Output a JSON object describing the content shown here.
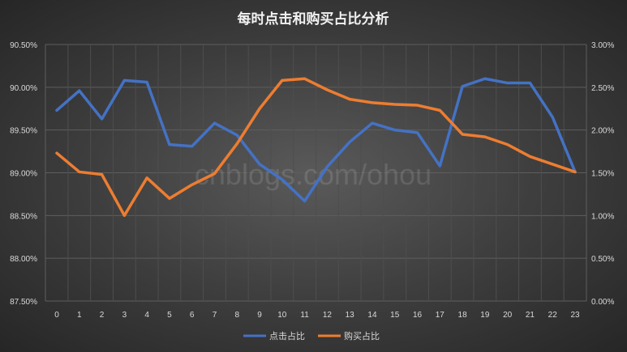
{
  "chart_data": {
    "type": "line",
    "title": "每时点击和购买占比分析",
    "watermark": "cnblogs.com/ohou",
    "categories": [
      "0",
      "1",
      "2",
      "3",
      "4",
      "5",
      "6",
      "7",
      "8",
      "9",
      "10",
      "11",
      "12",
      "13",
      "14",
      "15",
      "16",
      "17",
      "18",
      "19",
      "20",
      "21",
      "22",
      "23"
    ],
    "y_left": {
      "ylim": [
        87.5,
        90.5
      ],
      "ticks": [
        "87.50%",
        "88.00%",
        "88.50%",
        "89.00%",
        "89.50%",
        "90.00%",
        "90.50%"
      ]
    },
    "y_right": {
      "ylim": [
        0,
        3.0
      ],
      "ticks": [
        "0.00%",
        "0.50%",
        "1.00%",
        "1.50%",
        "2.00%",
        "2.50%",
        "3.00%"
      ]
    },
    "grid": true,
    "legend_position": "bottom",
    "series": [
      {
        "name": "点击占比",
        "axis": "left",
        "color": "#4472c4",
        "values": [
          89.73,
          89.96,
          89.63,
          90.08,
          90.06,
          89.33,
          89.31,
          89.58,
          89.44,
          89.1,
          88.92,
          88.67,
          89.07,
          89.36,
          89.58,
          89.5,
          89.47,
          89.08,
          90.01,
          90.1,
          90.05,
          90.05,
          89.65,
          89.01
        ]
      },
      {
        "name": "购买占比",
        "axis": "right",
        "color": "#ed7d31",
        "values": [
          1.73,
          1.51,
          1.48,
          1.0,
          1.44,
          1.2,
          1.36,
          1.49,
          1.84,
          2.25,
          2.58,
          2.6,
          2.47,
          2.36,
          2.32,
          2.3,
          2.29,
          2.23,
          1.95,
          1.92,
          1.83,
          1.69,
          1.6,
          1.51
        ]
      }
    ]
  }
}
